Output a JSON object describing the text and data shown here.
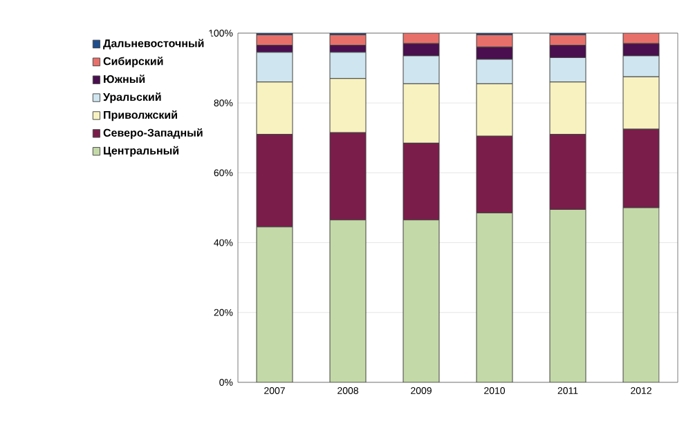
{
  "chart_data": {
    "type": "bar",
    "stacked": true,
    "categories": [
      "2007",
      "2008",
      "2009",
      "2010",
      "2011",
      "2012"
    ],
    "series": [
      {
        "name": "Центральный",
        "color": "#c4d9a8",
        "values": [
          44.5,
          46.5,
          46.5,
          48.5,
          49.5,
          50
        ]
      },
      {
        "name": "Северо-Западный",
        "color": "#7b1d4a",
        "values": [
          26.5,
          25,
          22,
          22,
          21.5,
          22.5
        ]
      },
      {
        "name": "Приволжский",
        "color": "#f8f2c0",
        "values": [
          15,
          15.5,
          17,
          15,
          15,
          15
        ]
      },
      {
        "name": "Уральский",
        "color": "#cfe5ef",
        "values": [
          8.5,
          7.5,
          8,
          7,
          7,
          6
        ]
      },
      {
        "name": "Южный",
        "color": "#4a0f4f",
        "values": [
          2,
          2,
          3.5,
          3.5,
          3.5,
          3.5
        ]
      },
      {
        "name": "Сибирский",
        "color": "#e8706a",
        "values": [
          3,
          3,
          3,
          3.5,
          3,
          3
        ]
      },
      {
        "name": "Дальневосточный",
        "color": "#1f4e8c",
        "values": [
          0.5,
          0.5,
          0,
          0.5,
          0.5,
          0
        ]
      }
    ],
    "ylim": [
      0,
      100
    ],
    "yticks": [
      {
        "value": 0,
        "label": "0%"
      },
      {
        "value": 20,
        "label": "20%"
      },
      {
        "value": 40,
        "label": "40%"
      },
      {
        "value": 60,
        "label": "60%"
      },
      {
        "value": 80,
        "label": "80%"
      },
      {
        "value": 100,
        "label": "100%"
      }
    ],
    "grid": "y",
    "legend": "left"
  }
}
